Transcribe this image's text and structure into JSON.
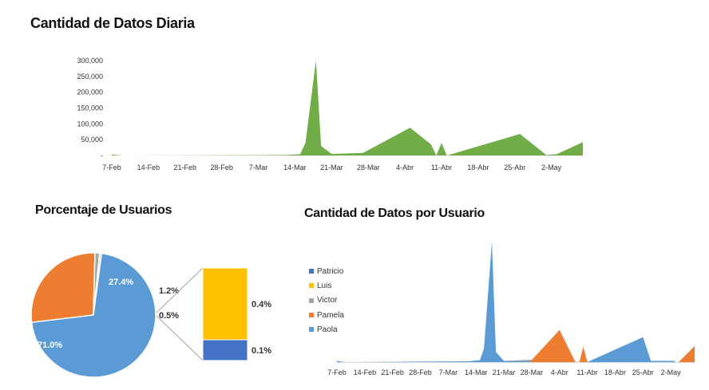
{
  "titles": {
    "daily": "Cantidad de Datos Diaria",
    "percentage": "Porcentaje de Usuarios",
    "per_user": "Cantidad de Datos por Usuario"
  },
  "colors": {
    "green": "#70ad47",
    "blue_paola": "#5b9bd5",
    "orange_pamela": "#ed7d31",
    "gray_victor": "#a5a5a5",
    "yellow_luis": "#ffc000",
    "navy_patricio": "#4472c4"
  },
  "chart_data": [
    {
      "id": "daily",
      "type": "area",
      "title": "Cantidad de Datos Diaria",
      "ylim": [
        0,
        300000
      ],
      "ytick_labels": [
        "-",
        "50,000",
        "100,000",
        "150,000",
        "200,000",
        "250,000",
        "300,000"
      ],
      "xtick_labels": [
        "7-Feb",
        "14-Feb",
        "21-Feb",
        "28-Feb",
        "7-Mar",
        "14-Mar",
        "21-Mar",
        "28-Mar",
        "4-Abr",
        "11-Abr",
        "18-Abr",
        "25-Abr",
        "2-May"
      ],
      "x_start": "7-Feb",
      "x_end": "8-May",
      "points": [
        [
          "7-Feb",
          3000
        ],
        [
          "9-Feb",
          0
        ],
        [
          "12-Mar",
          1500
        ],
        [
          "15-Mar",
          4000
        ],
        [
          "16-Mar",
          40000
        ],
        [
          "18-Mar",
          300000
        ],
        [
          "19-Mar",
          30000
        ],
        [
          "21-Mar",
          5000
        ],
        [
          "27-Mar",
          8000
        ],
        [
          "5-Abr",
          88000
        ],
        [
          "9-Abr",
          35000
        ],
        [
          "10-Abr",
          0
        ],
        [
          "11-Abr",
          40000
        ],
        [
          "12-Abr",
          0
        ],
        [
          "26-Abr",
          68000
        ],
        [
          "1-May",
          2000
        ],
        [
          "3-May",
          4000
        ],
        [
          "8-May",
          42000
        ]
      ],
      "grid": false,
      "legend": "none"
    },
    {
      "id": "percentage",
      "type": "pie",
      "title": "Porcentaje de Usuarios",
      "slices": [
        {
          "label": "71.0%",
          "value": 71.0,
          "series": "Paola"
        },
        {
          "label": "27.4%",
          "value": 27.4,
          "series": "Pamela"
        },
        {
          "label": "1.2%",
          "value": 1.2,
          "series": "Victor"
        },
        {
          "label": "0.5%",
          "value": 0.5,
          "series": "Luis+Patricio"
        }
      ],
      "bar_of_pie": [
        {
          "label": "0.4%",
          "value": 0.4,
          "series": "Luis"
        },
        {
          "label": "0.1%",
          "value": 0.1,
          "series": "Patricio"
        }
      ]
    },
    {
      "id": "per_user",
      "type": "area",
      "title": "Cantidad de Datos por Usuario",
      "xtick_labels": [
        "7-Feb",
        "14-Feb",
        "21-Feb",
        "28-Feb",
        "7-Mar",
        "14-Mar",
        "21-Mar",
        "28-Mar",
        "4-Abr",
        "11-Abr",
        "18-Abr",
        "25-Abr",
        "2-May"
      ],
      "x_start": "7-Feb",
      "x_end": "8-May",
      "ylim": [
        0,
        300000
      ],
      "legend": "left",
      "series": [
        {
          "name": "Patricio",
          "points": []
        },
        {
          "name": "Luis",
          "points": []
        },
        {
          "name": "Victor",
          "points": [
            [
              "21-Mar",
              3000
            ],
            [
              "28-Mar",
              6000
            ],
            [
              "31-Mar",
              2000
            ]
          ]
        },
        {
          "name": "Pamela",
          "points": [
            [
              "28-Mar",
              5000
            ],
            [
              "4-Abr",
              80000
            ],
            [
              "8-Abr",
              0
            ],
            [
              "9-Abr",
              0
            ],
            [
              "10-Abr",
              38000
            ],
            [
              "11-Abr",
              0
            ],
            [
              "4-May",
              0
            ],
            [
              "8-May",
              40000
            ]
          ]
        },
        {
          "name": "Paola",
          "points": [
            [
              "7-Feb",
              3000
            ],
            [
              "9-Feb",
              0
            ],
            [
              "12-Mar",
              2000
            ],
            [
              "15-Mar",
              5000
            ],
            [
              "16-Mar",
              35000
            ],
            [
              "18-Mar",
              300000
            ],
            [
              "19-Mar",
              25000
            ],
            [
              "21-Mar",
              3000
            ],
            [
              "28-Mar",
              2000
            ],
            [
              "11-Abr",
              0
            ],
            [
              "25-Abr",
              62000
            ],
            [
              "27-Abr",
              3000
            ],
            [
              "3-May",
              3000
            ]
          ]
        }
      ]
    }
  ]
}
